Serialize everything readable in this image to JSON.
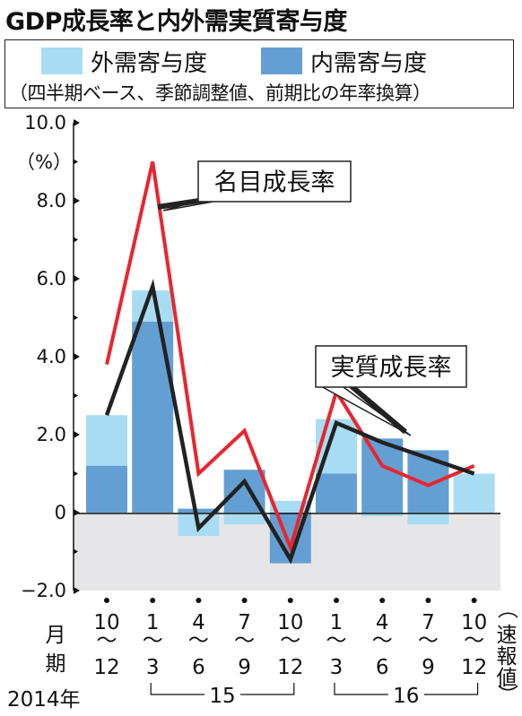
{
  "title": "GDP成長率と内外需実質寄与度",
  "legend": {
    "external": {
      "label": "外需寄与度",
      "color": "#a8dcf3"
    },
    "domestic": {
      "label": "内需寄与度",
      "color": "#649fd3"
    },
    "note": "（四半期ベース、季節調整値、前期比の年率換算）"
  },
  "chart_data": {
    "type": "bar",
    "title": "GDP成長率と内外需実質寄与度",
    "unit_label": "（%）",
    "ylim": [
      -2.0,
      10.0
    ],
    "y_ticks": [
      10.0,
      8.0,
      6.0,
      4.0,
      2.0,
      0,
      -2.0
    ],
    "y_tick_labels": [
      "10.0",
      "8.0",
      "6.0",
      "4.0",
      "2.0",
      "0",
      "−2.0"
    ],
    "categories": [
      "10〜12",
      "1〜3",
      "4〜6",
      "7〜9",
      "10〜12",
      "1〜3",
      "4〜6",
      "7〜9",
      "10〜12"
    ],
    "category_parts": [
      [
        "10",
        "〜",
        "12"
      ],
      [
        "1",
        "〜",
        "3"
      ],
      [
        "4",
        "〜",
        "6"
      ],
      [
        "7",
        "〜",
        "9"
      ],
      [
        "10",
        "〜",
        "12"
      ],
      [
        "1",
        "〜",
        "3"
      ],
      [
        "4",
        "〜",
        "6"
      ],
      [
        "7",
        "〜",
        "9"
      ],
      [
        "10",
        "〜",
        "12"
      ]
    ],
    "month_label": [
      "月",
      "期"
    ],
    "year_labels": [
      "2014年",
      "15",
      "16"
    ],
    "last_period_note": "（速報値）",
    "series": [
      {
        "name": "外需寄与度",
        "values": [
          1.3,
          0.8,
          -0.6,
          -0.3,
          0.3,
          1.4,
          -0.1,
          -0.3,
          1.0
        ]
      },
      {
        "name": "内需寄与度",
        "values": [
          1.2,
          4.9,
          0.1,
          1.1,
          -1.3,
          1.0,
          1.9,
          1.6,
          0.0
        ]
      },
      {
        "name": "名目成長率",
        "values": [
          3.8,
          9.0,
          1.0,
          2.1,
          -0.9,
          3.1,
          1.2,
          0.7,
          1.2
        ]
      },
      {
        "name": "実質成長率",
        "values": [
          2.5,
          5.8,
          -0.4,
          0.8,
          -1.2,
          2.3,
          1.8,
          1.4,
          1.0
        ]
      }
    ],
    "annotations": [
      "名目成長率",
      "実質成長率"
    ],
    "colors": {
      "nominal": "#e8262e",
      "real": "#222222",
      "negative_band": "#e6e6e8"
    }
  }
}
